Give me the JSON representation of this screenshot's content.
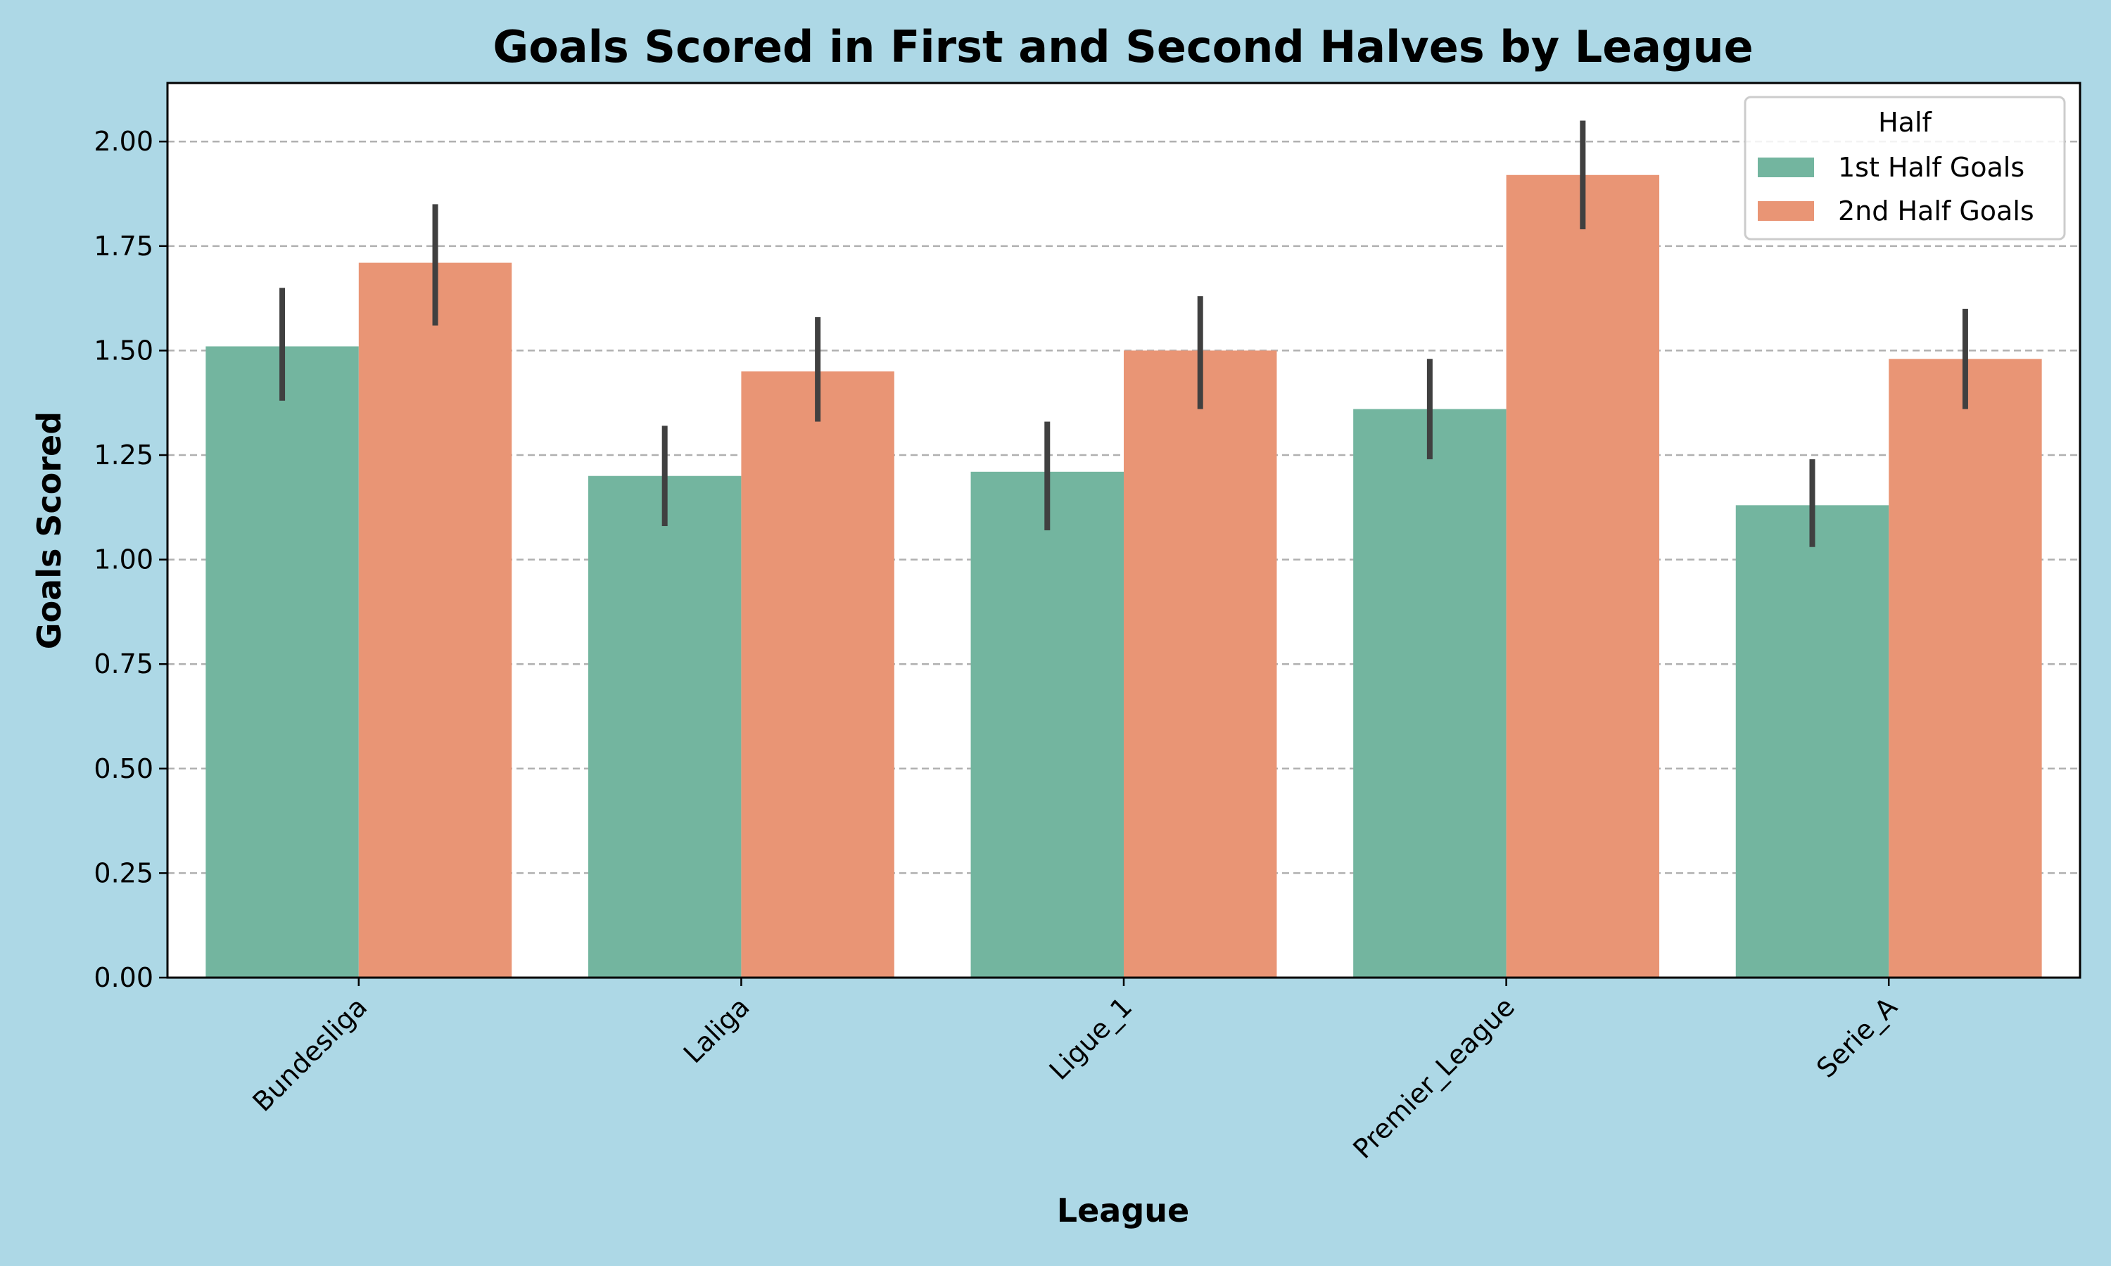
{
  "chart_data": {
    "type": "bar",
    "title": "Goals Scored in First and Second Halves by League",
    "xlabel": "League",
    "ylabel": "Goals Scored",
    "categories": [
      "Bundesliga",
      "Laliga",
      "Ligue_1",
      "Premier_League",
      "Serie_A"
    ],
    "series": [
      {
        "name": "1st Half Goals",
        "color": "#73b59f",
        "values": [
          1.51,
          1.2,
          1.21,
          1.36,
          1.13
        ],
        "ci_low": [
          1.38,
          1.08,
          1.07,
          1.24,
          1.03
        ],
        "ci_high": [
          1.65,
          1.32,
          1.33,
          1.48,
          1.24
        ]
      },
      {
        "name": "2nd Half Goals",
        "color": "#e99575",
        "values": [
          1.71,
          1.45,
          1.5,
          1.92,
          1.48
        ],
        "ci_low": [
          1.56,
          1.33,
          1.36,
          1.79,
          1.36
        ],
        "ci_high": [
          1.85,
          1.58,
          1.63,
          2.05,
          1.6
        ]
      }
    ],
    "ylim": [
      0,
      2.14
    ],
    "yticks": [
      "0.00",
      "0.25",
      "0.50",
      "0.75",
      "1.00",
      "1.25",
      "1.50",
      "1.75",
      "2.00"
    ],
    "grid": "y dashed",
    "legend": {
      "title": "Half",
      "position": "top-right"
    },
    "background_color": "#add8e6",
    "error_bar_color": "#404040"
  }
}
